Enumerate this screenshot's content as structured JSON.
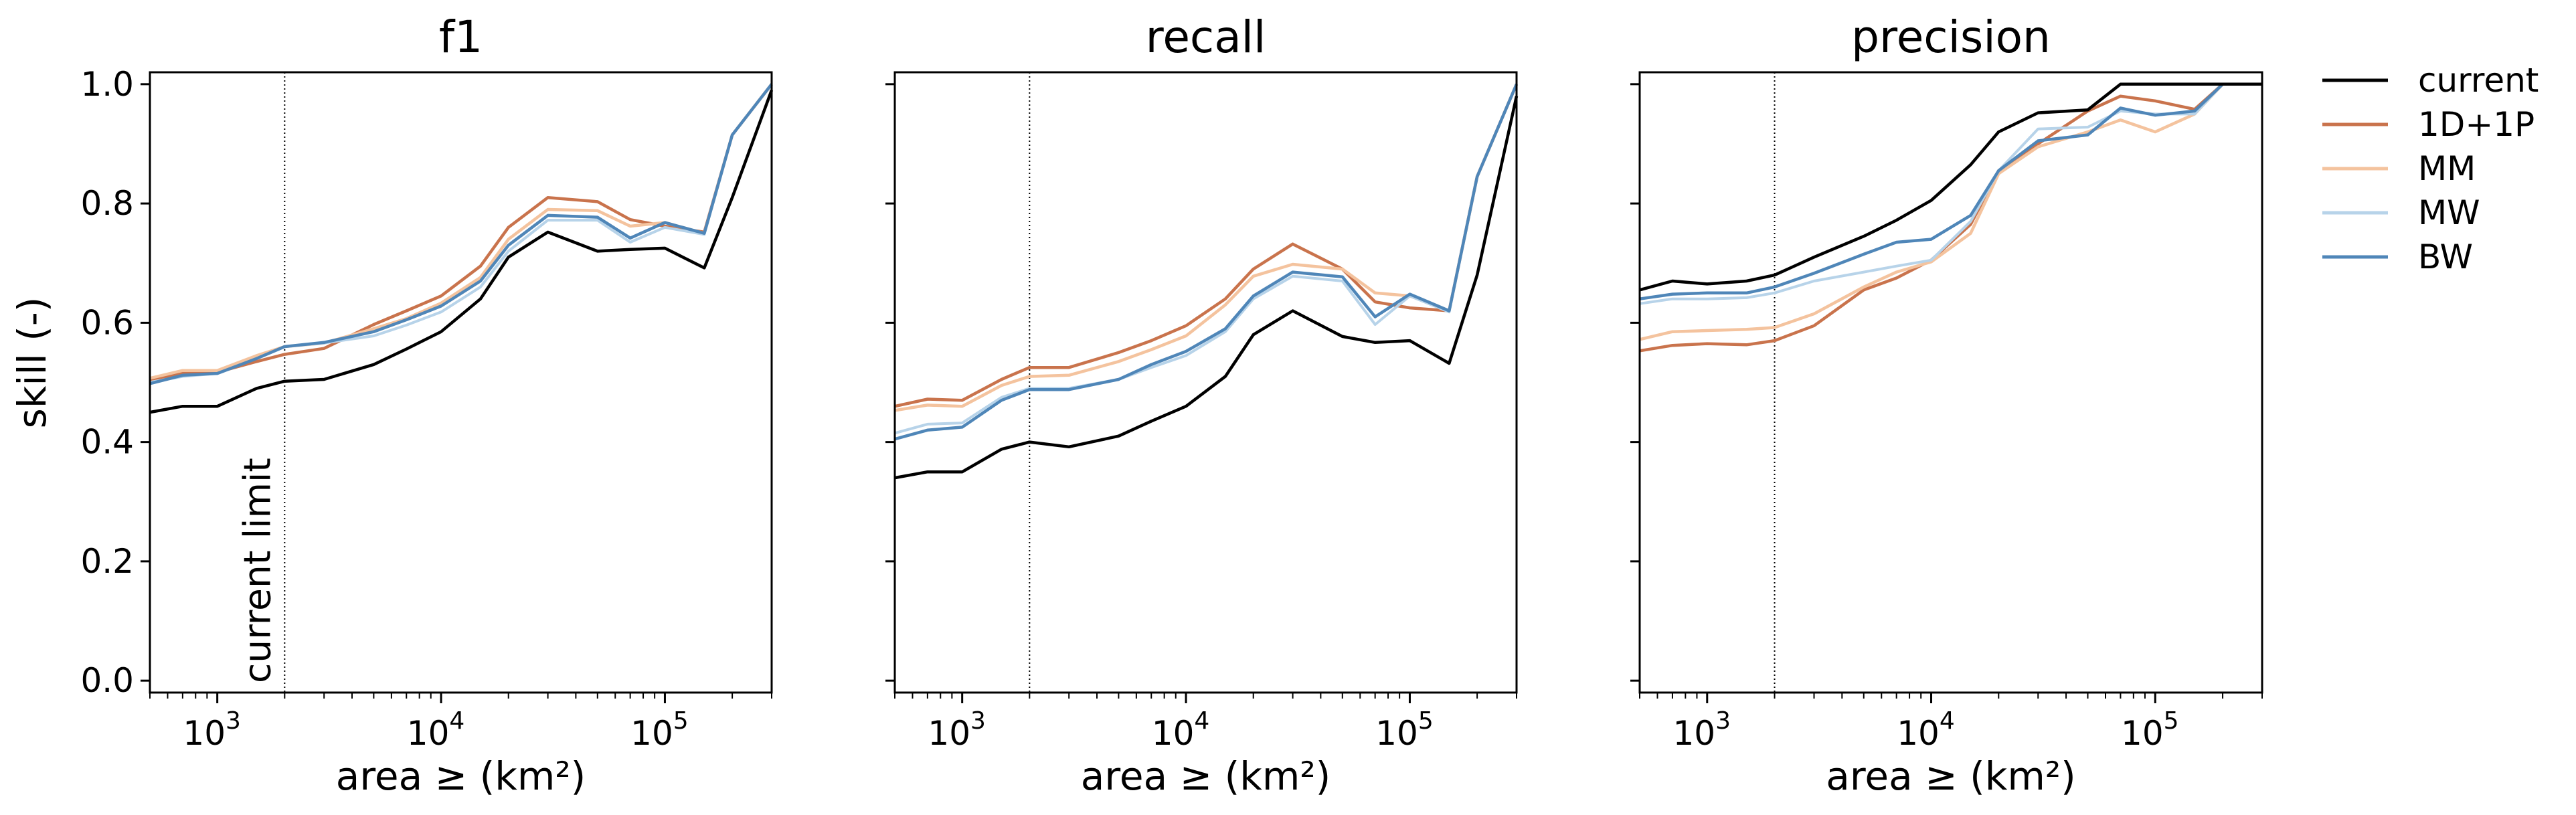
{
  "chart_data": [
    {
      "type": "line",
      "title": "f1",
      "xlabel": "area ≥ (km²)",
      "ylabel": "skill (-)",
      "xscale": "log",
      "xlim": [
        500,
        300000
      ],
      "ylim": [
        -0.02,
        1.02
      ],
      "grid": false,
      "reference_line": {
        "x": 2000,
        "style": "dotted",
        "label": "current limit"
      },
      "x": [
        500,
        700,
        1000,
        1500,
        2000,
        3000,
        5000,
        7000,
        10000,
        15000,
        20000,
        30000,
        50000,
        70000,
        100000,
        150000,
        200000,
        300000
      ],
      "series": [
        {
          "name": "current",
          "color": "#000000",
          "values": [
            0.45,
            0.46,
            0.46,
            0.49,
            0.502,
            0.505,
            0.53,
            0.556,
            0.585,
            0.64,
            0.71,
            0.752,
            0.72,
            0.723,
            0.725,
            0.692,
            0.81,
            0.99
          ]
        },
        {
          "name": "1D+1P",
          "color": "#c9734c",
          "values": [
            0.505,
            0.515,
            0.517,
            0.535,
            0.547,
            0.557,
            0.597,
            0.62,
            0.645,
            0.695,
            0.76,
            0.81,
            0.803,
            0.773,
            0.762,
            0.752,
            0.915,
            1.0
          ]
        },
        {
          "name": "MM",
          "color": "#f4c39e",
          "values": [
            0.507,
            0.52,
            0.52,
            0.545,
            0.56,
            0.566,
            0.59,
            0.607,
            0.633,
            0.676,
            0.74,
            0.79,
            0.788,
            0.762,
            0.768,
            0.75,
            0.915,
            1.0
          ]
        },
        {
          "name": "MW",
          "color": "#b7d3e9",
          "values": [
            0.5,
            0.51,
            0.515,
            0.54,
            0.56,
            0.566,
            0.578,
            0.596,
            0.618,
            0.66,
            0.72,
            0.772,
            0.772,
            0.735,
            0.76,
            0.748,
            0.915,
            1.0
          ]
        },
        {
          "name": "BW",
          "color": "#4f86b8",
          "values": [
            0.498,
            0.512,
            0.515,
            0.54,
            0.56,
            0.567,
            0.585,
            0.605,
            0.628,
            0.67,
            0.73,
            0.78,
            0.777,
            0.742,
            0.768,
            0.75,
            0.915,
            1.0
          ]
        }
      ]
    },
    {
      "type": "line",
      "title": "recall",
      "xlabel": "area ≥ (km²)",
      "ylabel": "",
      "xscale": "log",
      "xlim": [
        500,
        300000
      ],
      "ylim": [
        -0.02,
        1.02
      ],
      "grid": false,
      "reference_line": {
        "x": 2000,
        "style": "dotted"
      },
      "x": [
        500,
        700,
        1000,
        1500,
        2000,
        3000,
        5000,
        7000,
        10000,
        15000,
        20000,
        30000,
        50000,
        70000,
        100000,
        150000,
        200000,
        300000
      ],
      "series": [
        {
          "name": "current",
          "color": "#000000",
          "values": [
            0.34,
            0.35,
            0.35,
            0.388,
            0.4,
            0.392,
            0.41,
            0.435,
            0.46,
            0.51,
            0.58,
            0.62,
            0.577,
            0.567,
            0.57,
            0.532,
            0.68,
            0.98
          ]
        },
        {
          "name": "1D+1P",
          "color": "#c9734c",
          "values": [
            0.46,
            0.472,
            0.47,
            0.505,
            0.525,
            0.525,
            0.55,
            0.57,
            0.595,
            0.64,
            0.69,
            0.732,
            0.69,
            0.635,
            0.625,
            0.62,
            0.845,
            1.0
          ]
        },
        {
          "name": "MM",
          "color": "#f4c39e",
          "values": [
            0.453,
            0.462,
            0.46,
            0.495,
            0.51,
            0.512,
            0.535,
            0.555,
            0.578,
            0.63,
            0.678,
            0.698,
            0.69,
            0.65,
            0.645,
            0.62,
            0.845,
            1.0
          ]
        },
        {
          "name": "MW",
          "color": "#b7d3e9",
          "values": [
            0.415,
            0.43,
            0.432,
            0.475,
            0.49,
            0.49,
            0.505,
            0.525,
            0.545,
            0.585,
            0.64,
            0.678,
            0.67,
            0.597,
            0.645,
            0.618,
            0.845,
            1.0
          ]
        },
        {
          "name": "BW",
          "color": "#4f86b8",
          "values": [
            0.405,
            0.42,
            0.425,
            0.47,
            0.488,
            0.488,
            0.505,
            0.53,
            0.552,
            0.59,
            0.645,
            0.685,
            0.677,
            0.61,
            0.648,
            0.62,
            0.845,
            1.0
          ]
        }
      ]
    },
    {
      "type": "line",
      "title": "precision",
      "xlabel": "area ≥ (km²)",
      "ylabel": "",
      "xscale": "log",
      "xlim": [
        500,
        300000
      ],
      "ylim": [
        -0.02,
        1.02
      ],
      "grid": false,
      "reference_line": {
        "x": 2000,
        "style": "dotted"
      },
      "x": [
        500,
        700,
        1000,
        1500,
        2000,
        3000,
        5000,
        7000,
        10000,
        15000,
        20000,
        30000,
        50000,
        70000,
        100000,
        150000,
        200000,
        300000
      ],
      "series": [
        {
          "name": "current",
          "color": "#000000",
          "values": [
            0.655,
            0.67,
            0.665,
            0.67,
            0.68,
            0.71,
            0.745,
            0.772,
            0.805,
            0.865,
            0.92,
            0.952,
            0.957,
            1.0,
            1.0,
            1.0,
            1.0,
            1.0
          ]
        },
        {
          "name": "1D+1P",
          "color": "#c9734c",
          "values": [
            0.553,
            0.562,
            0.565,
            0.563,
            0.57,
            0.595,
            0.655,
            0.675,
            0.705,
            0.765,
            0.855,
            0.9,
            0.955,
            0.98,
            0.972,
            0.958,
            1.0,
            1.0
          ]
        },
        {
          "name": "MM",
          "color": "#f4c39e",
          "values": [
            0.572,
            0.585,
            0.587,
            0.589,
            0.592,
            0.615,
            0.66,
            0.685,
            0.702,
            0.75,
            0.85,
            0.895,
            0.92,
            0.94,
            0.92,
            0.95,
            1.0,
            1.0
          ]
        },
        {
          "name": "MW",
          "color": "#b7d3e9",
          "values": [
            0.632,
            0.64,
            0.64,
            0.642,
            0.65,
            0.67,
            0.685,
            0.695,
            0.705,
            0.77,
            0.855,
            0.925,
            0.928,
            0.955,
            0.95,
            0.95,
            1.0,
            1.0
          ]
        },
        {
          "name": "BW",
          "color": "#4f86b8",
          "values": [
            0.64,
            0.648,
            0.65,
            0.65,
            0.66,
            0.683,
            0.715,
            0.735,
            0.74,
            0.78,
            0.855,
            0.905,
            0.915,
            0.96,
            0.948,
            0.955,
            1.0,
            1.0
          ]
        }
      ]
    }
  ],
  "legend": {
    "placement": "right",
    "entries": [
      {
        "name": "current",
        "color": "#000000"
      },
      {
        "name": "1D+1P",
        "color": "#c9734c"
      },
      {
        "name": "MM",
        "color": "#f4c39e"
      },
      {
        "name": "MW",
        "color": "#b7d3e9"
      },
      {
        "name": "BW",
        "color": "#4f86b8"
      }
    ]
  },
  "y_ticks": [
    "0.0",
    "0.2",
    "0.4",
    "0.6",
    "0.8",
    "1.0"
  ],
  "x_ticks": [
    {
      "base": "10",
      "exp": "3"
    },
    {
      "base": "10",
      "exp": "4"
    },
    {
      "base": "10",
      "exp": "5"
    }
  ]
}
